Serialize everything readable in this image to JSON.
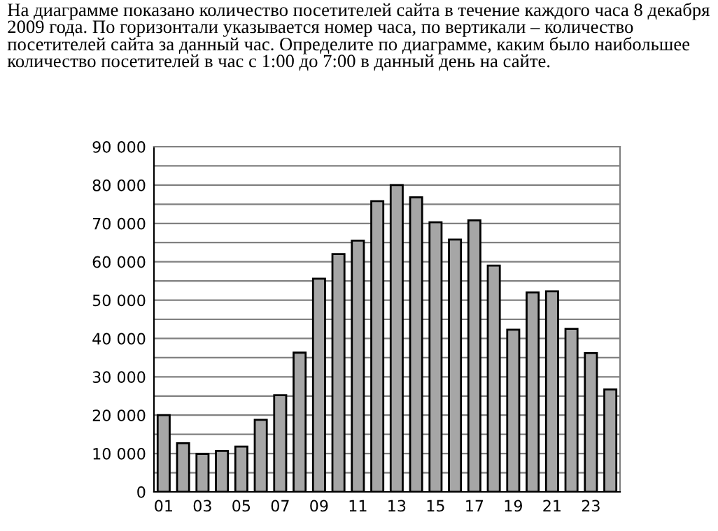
{
  "chart_data": {
    "type": "bar",
    "title": "На диаграмме показано количество посетителей сайта в течение каждого часа 8 декабря 2009 года. По горизонтали указывается номер часа, по вертикали – количество посетителей сайта за данный час. Определите по диаграмме, каким было наибольшее количество посетителей в час с 1:00 до 7:00 в данный день на сайте.",
    "categories": [
      "01",
      null,
      "03",
      null,
      "05",
      null,
      "07",
      null,
      "09",
      null,
      "11",
      null,
      "13",
      null,
      "15",
      null,
      "17",
      null,
      "19",
      null,
      "21",
      null,
      "23",
      null
    ],
    "values": [
      20000,
      12700,
      9900,
      10700,
      11800,
      18800,
      25200,
      36300,
      55600,
      62000,
      65500,
      75800,
      80000,
      76800,
      70300,
      65800,
      70800,
      59000,
      42300,
      52000,
      52300,
      42500,
      36200,
      26700
    ],
    "color": "#a6a6a6",
    "ylim": [
      0,
      90000
    ],
    "yticks": [
      {
        "value": 0,
        "label": "0"
      },
      {
        "value": 5000,
        "label": null
      },
      {
        "value": 10000,
        "label": "10 000"
      },
      {
        "value": 15000,
        "label": null
      },
      {
        "value": 20000,
        "label": "20 000"
      },
      {
        "value": 25000,
        "label": null
      },
      {
        "value": 30000,
        "label": "30 000"
      },
      {
        "value": 35000,
        "label": null
      },
      {
        "value": 40000,
        "label": "40 000"
      },
      {
        "value": 45000,
        "label": null
      },
      {
        "value": 50000,
        "label": "50 000"
      },
      {
        "value": 55000,
        "label": null
      },
      {
        "value": 60000,
        "label": "60 000"
      },
      {
        "value": 65000,
        "label": null
      },
      {
        "value": 70000,
        "label": "70 000"
      },
      {
        "value": 75000,
        "label": null
      },
      {
        "value": 80000,
        "label": "80 000"
      },
      {
        "value": 85000,
        "label": null
      },
      {
        "value": 90000,
        "label": "90 000"
      }
    ],
    "grid": "y"
  }
}
